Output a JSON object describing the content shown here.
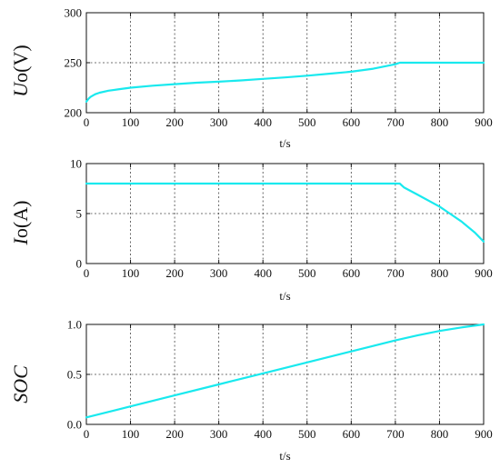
{
  "chart_data": [
    {
      "type": "line",
      "title": "",
      "xlabel": "t/s",
      "ylabel_italic": "U",
      "ylabel_rest": "o(V)",
      "xlim": [
        0,
        900
      ],
      "ylim": [
        200,
        300
      ],
      "xticks": [
        0,
        100,
        200,
        300,
        400,
        500,
        600,
        700,
        800,
        900
      ],
      "yticks": [
        200,
        250,
        300
      ],
      "ytick_labels": [
        "200",
        "250",
        "300"
      ],
      "grid": true,
      "color": "#19e9ee",
      "series": [
        {
          "x": [
            0,
            5,
            10,
            20,
            30,
            50,
            75,
            100,
            150,
            200,
            250,
            300,
            350,
            400,
            450,
            500,
            550,
            600,
            650,
            700,
            710,
            720,
            800,
            900
          ],
          "y": [
            211,
            214,
            216,
            218.5,
            220,
            222,
            223.5,
            225,
            227,
            228.5,
            230,
            231,
            232.3,
            233.8,
            235.3,
            237,
            239,
            241,
            244,
            248.5,
            250,
            250,
            250,
            250
          ]
        }
      ]
    },
    {
      "type": "line",
      "title": "",
      "xlabel": "t/s",
      "ylabel_italic": "I",
      "ylabel_rest": "o(A)",
      "xlim": [
        0,
        900
      ],
      "ylim": [
        0,
        10
      ],
      "xticks": [
        0,
        100,
        200,
        300,
        400,
        500,
        600,
        700,
        800,
        900
      ],
      "yticks": [
        0,
        5,
        10
      ],
      "ytick_labels": [
        "0",
        "5",
        "10"
      ],
      "grid": true,
      "color": "#19e9ee",
      "series": [
        {
          "x": [
            0,
            100,
            200,
            300,
            400,
            500,
            600,
            700,
            710,
            720,
            750,
            800,
            820,
            850,
            880,
            900
          ],
          "y": [
            8,
            8,
            8,
            8,
            8,
            8,
            8,
            8,
            8,
            7.6,
            6.9,
            5.7,
            5.1,
            4.2,
            3.1,
            2.2
          ]
        }
      ]
    },
    {
      "type": "line",
      "title": "",
      "xlabel": "t/s",
      "ylabel_italic": "SOC",
      "ylabel_rest": "",
      "xlim": [
        0,
        900
      ],
      "ylim": [
        0,
        1
      ],
      "xticks": [
        0,
        100,
        200,
        300,
        400,
        500,
        600,
        700,
        800,
        900
      ],
      "yticks": [
        0,
        0.5,
        1
      ],
      "ytick_labels": [
        "0.0",
        "0.5",
        "1.0"
      ],
      "grid": true,
      "color": "#19e9ee",
      "series": [
        {
          "x": [
            0,
            100,
            200,
            300,
            400,
            500,
            600,
            700,
            750,
            800,
            850,
            900
          ],
          "y": [
            0.07,
            0.18,
            0.29,
            0.4,
            0.51,
            0.62,
            0.73,
            0.84,
            0.89,
            0.935,
            0.97,
            1.0
          ]
        }
      ]
    }
  ]
}
